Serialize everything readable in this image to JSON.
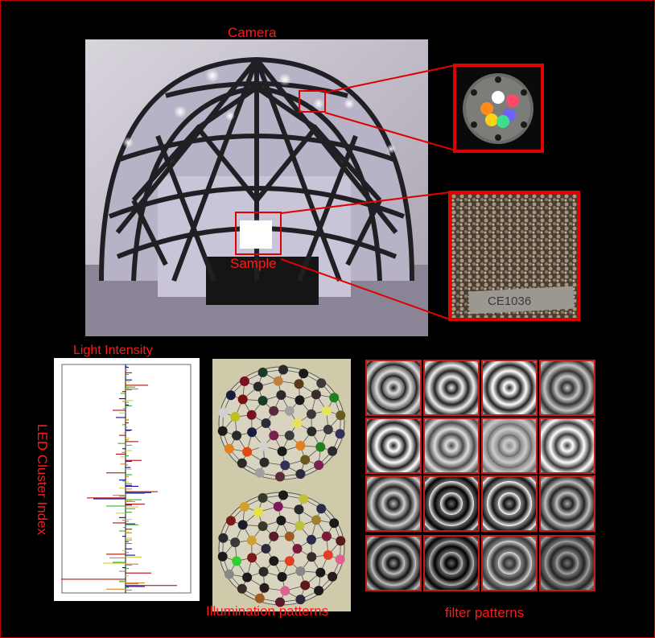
{
  "labels": {
    "camera": "Camera",
    "sample": "Sample",
    "light_intensity": "Light Intensity",
    "led_cluster_index": "LED Cluster Index",
    "illumination_patterns": "Illumination patterns",
    "filter_patterns": "filter patterns"
  },
  "sample_slide_text": "CE1036",
  "led_cluster_colors": [
    "#ffffff",
    "#ff4a6a",
    "#ff8a1a",
    "#7060ff",
    "#ffd21a",
    "#3de08a"
  ],
  "sphere_patterns": [
    {
      "dot_colors": [
        "#e8e060",
        "#3a3a3a",
        "#7a2050",
        "#2a2a3a",
        "#5a2a3a",
        "#a0a0a0",
        "#2a2a2a",
        "#e08020",
        "#1a1a1a",
        "#d0d0d0",
        "#1a1a3a",
        "#7a1020",
        "#1a3a2a",
        "#2a2a2a",
        "#1a1a1a",
        "#3a3a3a",
        "#208020",
        "#6a5a20",
        "#30305a",
        "#2a2a2a",
        "#e04a10",
        "#2a2a2a",
        "#c0c020",
        "#7a1010",
        "#2a2a2a",
        "#c08040",
        "#5a3a1a",
        "#3a2a2a"
      ]
    },
    {
      "dot_colors": [
        "#7a1a3a",
        "#e04020",
        "#1a1a1a",
        "#2a2a3a",
        "#5a1a2a",
        "#a05a20",
        "#3a2a2a",
        "#888888",
        "#1a1a1a",
        "#2a2a2a",
        "#7a1a1a",
        "#d0a030",
        "#3a3a2a",
        "#1a1a1a",
        "#c0c040",
        "#2a2a4a",
        "#1a1a1a",
        "#5a1a1a",
        "#e06090",
        "#2a1a1a",
        "#1a1a1a",
        "#30d030",
        "#3a3a3a",
        "#1a1a2a",
        "#e8e040",
        "#7a1a5a",
        "#2a2a2a",
        "#a08030"
      ]
    }
  ],
  "chart_data": {
    "type": "bar",
    "orientation": "horizontal",
    "title": "Light Intensity",
    "ylabel": "LED Cluster Index",
    "xlim": [
      -1,
      1
    ],
    "series": [
      {
        "color": "#b01010",
        "values": [
          0.02,
          0.1,
          0,
          0.35,
          -0.05,
          0,
          0,
          -0.2,
          0,
          0.05,
          0,
          -0.1,
          0.2,
          0,
          -0.15,
          0.25,
          0,
          -0.3,
          0,
          0.1,
          0.5,
          -0.6,
          0.3,
          0,
          0,
          -0.2,
          0.1,
          0,
          0.05,
          0,
          -0.3,
          0,
          0,
          0.4,
          -1,
          0.8
        ]
      },
      {
        "color": "#0a0ab0",
        "values": [
          0.05,
          0,
          0.1,
          0,
          0,
          -0.1,
          0.05,
          0,
          -0.15,
          0,
          0.1,
          0,
          0,
          -0.05,
          0,
          0.1,
          0.08,
          0,
          -0.1,
          0.2,
          0.4,
          -0.5,
          0.1,
          0,
          -0.1,
          0.15,
          0,
          -0.05,
          0,
          0.1,
          0.15,
          0,
          -0.05,
          0,
          0,
          0.3
        ]
      },
      {
        "color": "#30b030",
        "values": [
          0,
          0.05,
          0,
          0.15,
          -0.08,
          0,
          0.1,
          0,
          0,
          -0.05,
          0.08,
          0,
          -0.12,
          0,
          0.05,
          0,
          0,
          0.1,
          -0.05,
          0,
          0.3,
          0.25,
          -0.3,
          0.1,
          0,
          0.2,
          -0.1,
          0,
          0.1,
          0,
          0,
          -0.2,
          0.05,
          0,
          -0.1,
          0.05
        ]
      },
      {
        "color": "#d0d030",
        "values": [
          0,
          0,
          0.08,
          0.05,
          0,
          0.12,
          0,
          -0.1,
          0.05,
          0,
          0,
          0.06,
          0,
          0.1,
          -0.08,
          0,
          0.1,
          0,
          0.05,
          -0.1,
          0,
          0.1,
          0.2,
          -0.15,
          0.1,
          0,
          0.05,
          0.1,
          0,
          -0.05,
          0.25,
          -0.35,
          0,
          0.05,
          -0.1,
          0
        ]
      },
      {
        "color": "#e08020",
        "values": [
          0.03,
          0,
          0,
          0.2,
          0,
          -0.05,
          0.02,
          0,
          0.05,
          0,
          -0.03,
          0,
          0.1,
          0,
          0,
          -0.08,
          0,
          0.05,
          0,
          0.1,
          -0.2,
          0.15,
          0,
          0,
          -0.05,
          0,
          0.1,
          0,
          0.02,
          0,
          -0.25,
          0.2,
          0,
          0,
          0.3,
          -0.3
        ]
      },
      {
        "color": "#888888",
        "values": [
          0,
          0.02,
          0,
          0.1,
          0,
          0.05,
          -0.04,
          0,
          0,
          0.03,
          0,
          0.05,
          0,
          -0.06,
          0,
          0.04,
          0,
          0,
          0.1,
          0,
          -0.1,
          0,
          0.15,
          0,
          0.05,
          -0.04,
          0,
          0.1,
          0,
          0.05,
          0,
          0.1,
          -0.1,
          0,
          0.2,
          0.1
        ]
      }
    ]
  }
}
